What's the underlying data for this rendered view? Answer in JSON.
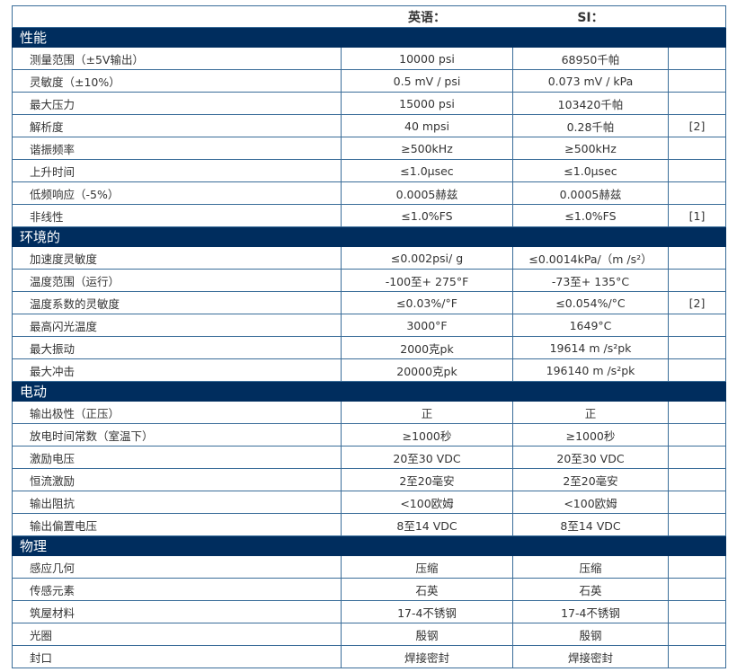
{
  "header": {
    "english": "英语：",
    "si": "SI："
  },
  "sections": [
    {
      "title": "性能",
      "rows": [
        [
          "测量范围（±5V输出）",
          "10000 psi",
          "68950千帕",
          ""
        ],
        [
          "灵敏度（±10%）",
          "0.5 mV / psi",
          "0.073 mV / kPa",
          ""
        ],
        [
          "最大压力",
          "15000 psi",
          "103420千帕",
          ""
        ],
        [
          "解析度",
          "40 mpsi",
          "0.28千帕",
          "[2]"
        ],
        [
          "谐振频率",
          "≥500kHz",
          "≥500kHz",
          ""
        ],
        [
          "上升时间",
          "≤1.0μsec",
          "≤1.0μsec",
          ""
        ],
        [
          "低频响应（-5%）",
          "0.0005赫兹",
          "0.0005赫兹",
          ""
        ],
        [
          "非线性",
          "≤1.0%FS",
          "≤1.0%FS",
          "[1]"
        ]
      ]
    },
    {
      "title": "环境的",
      "rows": [
        [
          "加速度灵敏度",
          "≤0.002psi/ g",
          "≤0.0014kPa/（m /s²）",
          ""
        ],
        [
          "温度范围（运行）",
          "-100至+ 275°F",
          "-73至+ 135°C",
          ""
        ],
        [
          "温度系数的灵敏度",
          "≤0.03%/°F",
          "≤0.054%/°C",
          "[2]"
        ],
        [
          "最高闪光温度",
          "3000°F",
          "1649°C",
          ""
        ],
        [
          "最大振动",
          "2000克pk",
          "19614 m /s²pk",
          ""
        ],
        [
          "最大冲击",
          "20000克pk",
          "196140 m /s²pk",
          ""
        ]
      ]
    },
    {
      "title": "电动",
      "rows": [
        [
          "输出极性（正压）",
          "正",
          "正",
          ""
        ],
        [
          "放电时间常数（室温下）",
          "≥1000秒",
          "≥1000秒",
          ""
        ],
        [
          "激励电压",
          "20至30 VDC",
          "20至30 VDC",
          ""
        ],
        [
          "恒流激励",
          "2至20毫安",
          "2至20毫安",
          ""
        ],
        [
          "输出阻抗",
          "<100欧姆",
          "<100欧姆",
          ""
        ],
        [
          "输出偏置电压",
          "8至14 VDC",
          "8至14 VDC",
          ""
        ]
      ]
    },
    {
      "title": "物理",
      "rows": [
        [
          "感应几何",
          "压缩",
          "压缩",
          ""
        ],
        [
          "传感元素",
          "石英",
          "石英",
          ""
        ],
        [
          "筑屋材料",
          "17-4不锈钢",
          "17-4不锈钢",
          ""
        ],
        [
          "光圈",
          "殷钢",
          "殷钢",
          ""
        ],
        [
          "封口",
          "焊接密封",
          "焊接密封",
          ""
        ]
      ]
    }
  ]
}
